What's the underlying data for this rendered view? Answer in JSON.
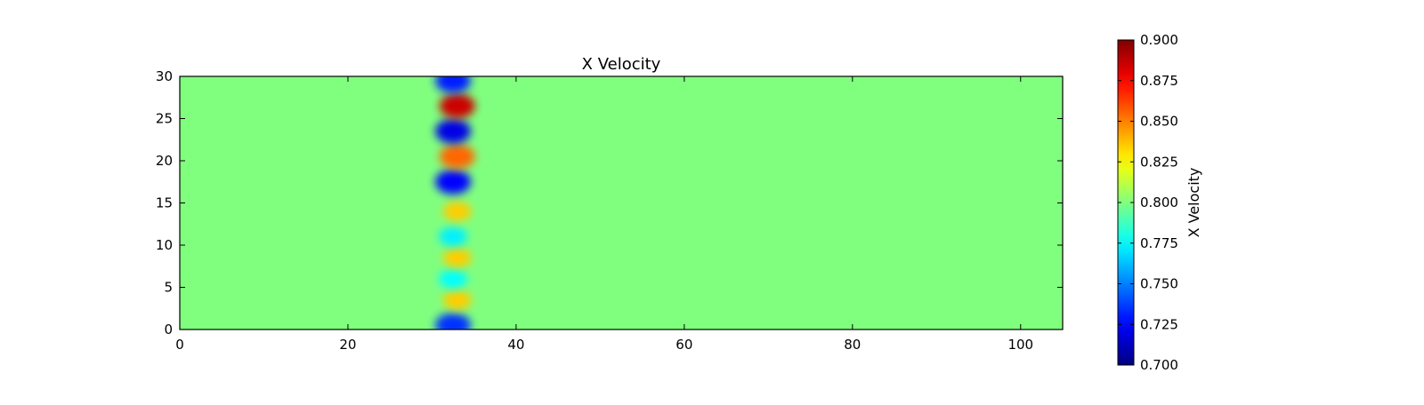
{
  "chart_data": {
    "type": "heatmap",
    "title": "X Velocity",
    "xlabel": "",
    "ylabel": "",
    "xlim": [
      0,
      105
    ],
    "ylim": [
      0,
      30
    ],
    "xticks": [
      0,
      20,
      40,
      60,
      80,
      100
    ],
    "yticks": [
      0,
      5,
      10,
      15,
      20,
      25,
      30
    ],
    "grid": false,
    "colorbar": {
      "label": "X Velocity",
      "colormap": "jet",
      "range": [
        0.7,
        0.9
      ],
      "ticks": [
        "0.700",
        "0.725",
        "0.750",
        "0.775",
        "0.800",
        "0.825",
        "0.850",
        "0.875",
        "0.900"
      ]
    },
    "background_value": 0.8,
    "features": [
      {
        "x": 32.5,
        "y": 0.5,
        "value": 0.735
      },
      {
        "x": 33.0,
        "y": 3.5,
        "value": 0.835
      },
      {
        "x": 32.5,
        "y": 6.0,
        "value": 0.775
      },
      {
        "x": 33.0,
        "y": 8.5,
        "value": 0.835
      },
      {
        "x": 32.5,
        "y": 11.0,
        "value": 0.772
      },
      {
        "x": 33.0,
        "y": 14.0,
        "value": 0.835
      },
      {
        "x": 32.5,
        "y": 17.5,
        "value": 0.725
      },
      {
        "x": 33.0,
        "y": 20.5,
        "value": 0.855
      },
      {
        "x": 32.5,
        "y": 23.5,
        "value": 0.72
      },
      {
        "x": 33.0,
        "y": 26.5,
        "value": 0.885
      },
      {
        "x": 32.5,
        "y": 29.5,
        "value": 0.73
      }
    ]
  }
}
